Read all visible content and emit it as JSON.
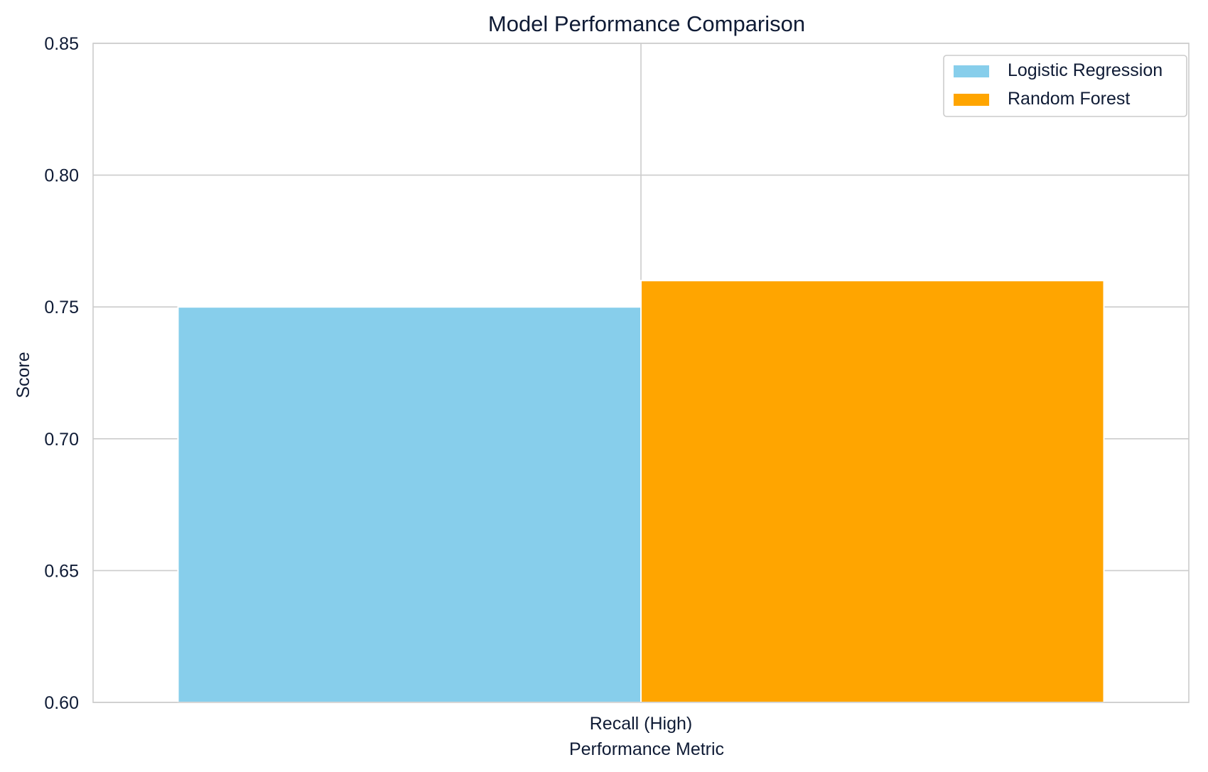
{
  "chart_data": {
    "type": "bar",
    "title": "Model Performance Comparison",
    "xlabel": "Performance Metric",
    "ylabel": "Score",
    "categories": [
      "Recall (High)"
    ],
    "series": [
      {
        "name": "Logistic Regression",
        "values": [
          0.75
        ],
        "color": "#87ceeb"
      },
      {
        "name": "Random Forest",
        "values": [
          0.76
        ],
        "color": "#ffa500"
      }
    ],
    "ylim": [
      0.6,
      0.85
    ],
    "yticks": [
      "0.60",
      "0.65",
      "0.70",
      "0.75",
      "0.80",
      "0.85"
    ],
    "grid": true,
    "legend_position": "top-right",
    "colors": {
      "grid": "#cccccc",
      "spine": "#cccccc",
      "text": "#0f1b35"
    }
  }
}
